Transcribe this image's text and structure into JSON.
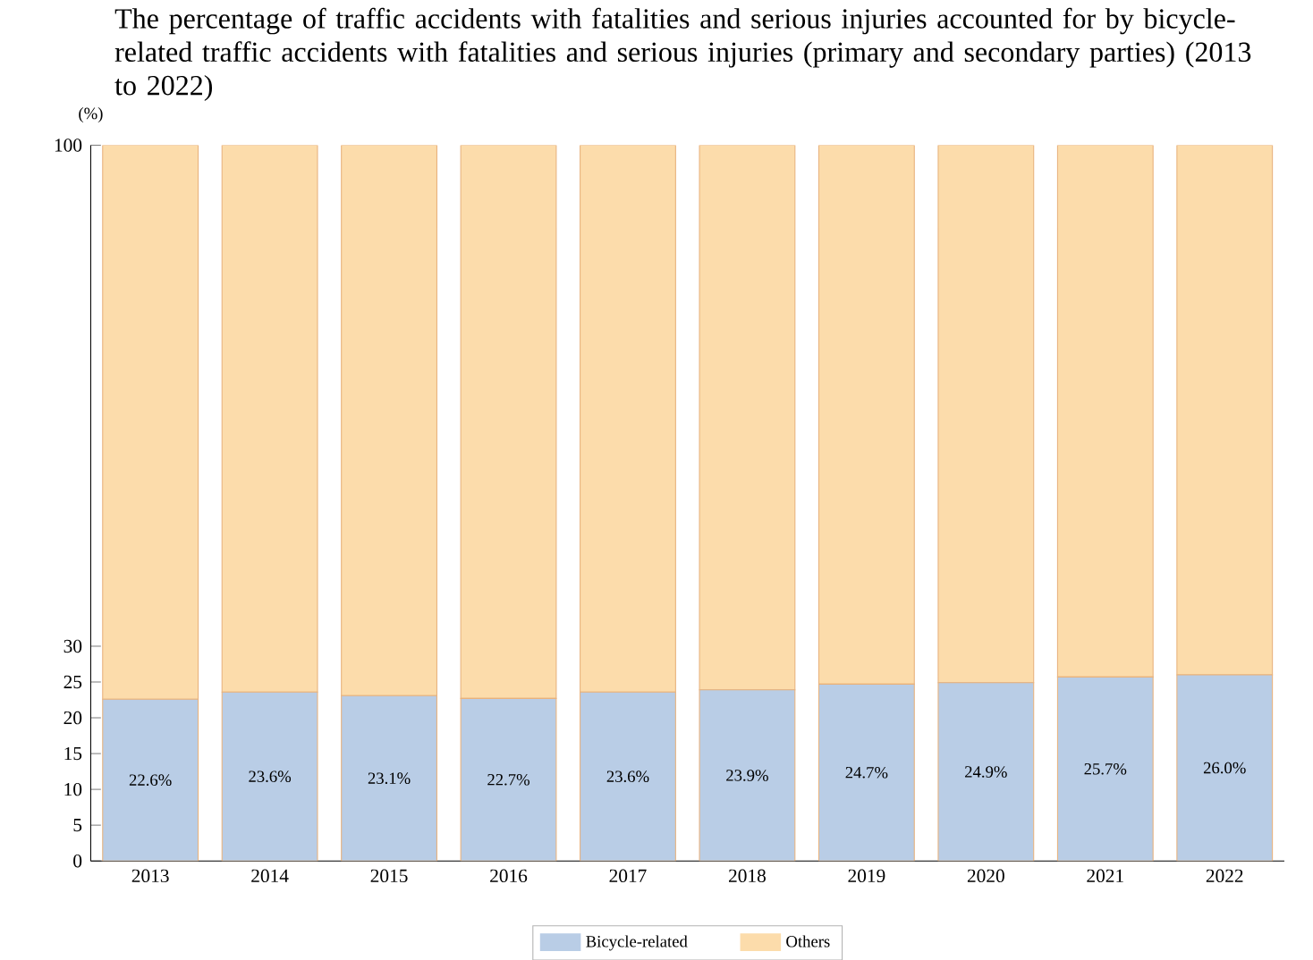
{
  "chart_data": {
    "type": "bar",
    "stacked": true,
    "title": "The percentage of traffic accidents with fatalities and serious injuries accounted for by bicycle-related traffic accidents with fatalities and serious injuries (primary and secondary parties) (2013 to 2022)",
    "ylabel": "(%)",
    "categories": [
      "2013",
      "2014",
      "2015",
      "2016",
      "2017",
      "2018",
      "2019",
      "2020",
      "2021",
      "2022"
    ],
    "series": [
      {
        "name": "Bicycle-related",
        "color": "#b9cde6",
        "values": [
          22.6,
          23.6,
          23.1,
          22.7,
          23.6,
          23.9,
          24.7,
          24.9,
          25.7,
          26.0
        ],
        "value_labels": [
          "22.6%",
          "23.6%",
          "23.1%",
          "22.7%",
          "23.6%",
          "23.9%",
          "24.7%",
          "24.9%",
          "25.7%",
          "26.0%"
        ]
      },
      {
        "name": "Others",
        "color": "#fcdcab",
        "values": [
          77.4,
          76.4,
          76.9,
          77.3,
          76.4,
          76.1,
          75.3,
          75.1,
          74.3,
          74.0
        ]
      }
    ],
    "ylim": [
      0,
      100
    ],
    "yticks": [
      0,
      5,
      10,
      15,
      20,
      25,
      30,
      100
    ],
    "grid": false,
    "legend": "bottom"
  }
}
